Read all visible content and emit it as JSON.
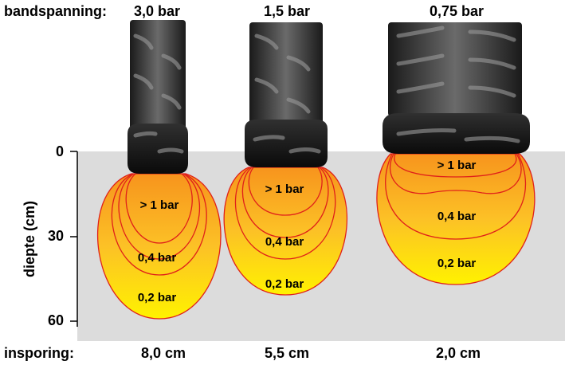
{
  "header_label": "bandspanning:",
  "footer_label": "insporing:",
  "axis": {
    "label": "diepte (cm)",
    "ticks": [
      "0",
      "30",
      "60"
    ]
  },
  "tires": [
    {
      "pressure": "3,0 bar",
      "zones": [
        "> 1 bar",
        "0,4 bar",
        "0,2 bar"
      ],
      "rutting": "8,0 cm"
    },
    {
      "pressure": "1,5 bar",
      "zones": [
        "> 1 bar",
        "0,4 bar",
        "0,2 bar"
      ],
      "rutting": "5,5 cm"
    },
    {
      "pressure": "0,75 bar",
      "zones": [
        "> 1 bar",
        "0,4 bar",
        "0,2 bar"
      ],
      "rutting": "2,0 cm"
    }
  ]
}
